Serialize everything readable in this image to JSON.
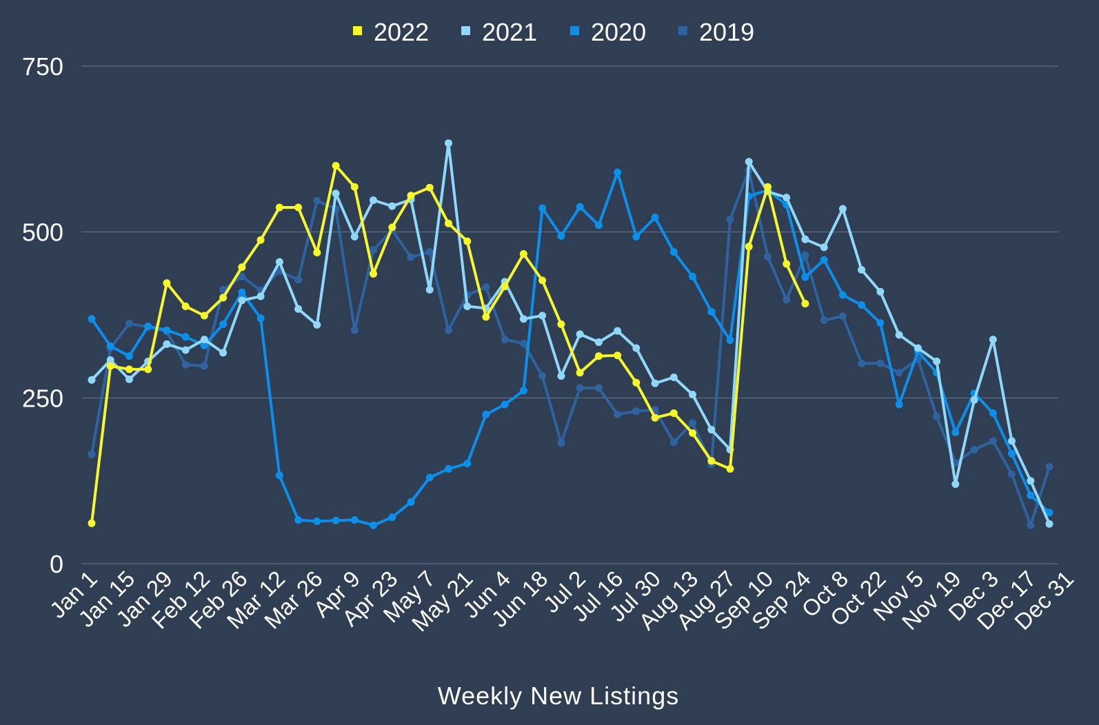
{
  "chart_data": {
    "type": "line",
    "title": "",
    "xlabel": "Weekly New Listings",
    "ylabel": "",
    "ylim": [
      0,
      750
    ],
    "yticks": [
      0,
      250,
      500,
      750
    ],
    "grid": true,
    "legend_position": "top-center",
    "x_tick_labels": [
      "Jan 1",
      "Jan 15",
      "Jan 29",
      "Feb 12",
      "Feb 26",
      "Mar 12",
      "Mar 26",
      "Apr 9",
      "Apr 23",
      "May 7",
      "May 21",
      "Jun 4",
      "Jun 18",
      "Jul 2",
      "Jul 16",
      "Jul 30",
      "Aug 13",
      "Aug 27",
      "Sep 10",
      "Sep 24",
      "Oct 8",
      "Oct 22",
      "Nov 5",
      "Nov 19",
      "Dec 3",
      "Dec 17",
      "Dec 31"
    ],
    "series": [
      {
        "name": "2019",
        "color": "#2f63a0",
        "values": [
          165,
          325,
          362,
          357,
          350,
          300,
          298,
          413,
          433,
          412,
          441,
          428,
          547,
          535,
          352,
          473,
          503,
          462,
          470,
          352,
          405,
          417,
          338,
          332,
          283,
          182,
          265,
          265,
          225,
          230,
          232,
          183,
          212,
          150,
          519,
          593,
          463,
          398,
          465,
          367,
          373,
          302,
          302,
          288,
          308,
          222,
          152,
          172,
          185,
          135,
          58,
          146
        ]
      },
      {
        "name": "2020",
        "color": "#0b8fea",
        "values": [
          369,
          328,
          313,
          358,
          352,
          342,
          329,
          361,
          409,
          370,
          133,
          66,
          64,
          65,
          66,
          58,
          70,
          93,
          130,
          143,
          151,
          225,
          240,
          261,
          536,
          494,
          538,
          510,
          590,
          493,
          522,
          470,
          433,
          380,
          337,
          554,
          563,
          541,
          432,
          458,
          405,
          390,
          363,
          240,
          320,
          288,
          198,
          257,
          227,
          166,
          103,
          77
        ]
      },
      {
        "name": "2021",
        "color": "#8fd8fb",
        "values": [
          277,
          307,
          278,
          305,
          331,
          322,
          338,
          318,
          397,
          403,
          455,
          384,
          360,
          558,
          493,
          548,
          539,
          549,
          413,
          634,
          388,
          385,
          425,
          369,
          374,
          283,
          346,
          334,
          351,
          325,
          272,
          281,
          255,
          202,
          172,
          606,
          561,
          552,
          489,
          477,
          535,
          443,
          410,
          345,
          325,
          305,
          120,
          247,
          338,
          185,
          125,
          60
        ]
      },
      {
        "name": "2022",
        "color": "#f7f72a",
        "values": [
          61,
          298,
          293,
          293,
          423,
          388,
          374,
          401,
          447,
          488,
          537,
          537,
          469,
          600,
          568,
          437,
          507,
          555,
          567,
          513,
          486,
          372,
          418,
          467,
          427,
          361,
          288,
          313,
          314,
          273,
          220,
          227,
          197,
          155,
          143,
          478,
          568,
          452,
          392
        ]
      }
    ]
  }
}
